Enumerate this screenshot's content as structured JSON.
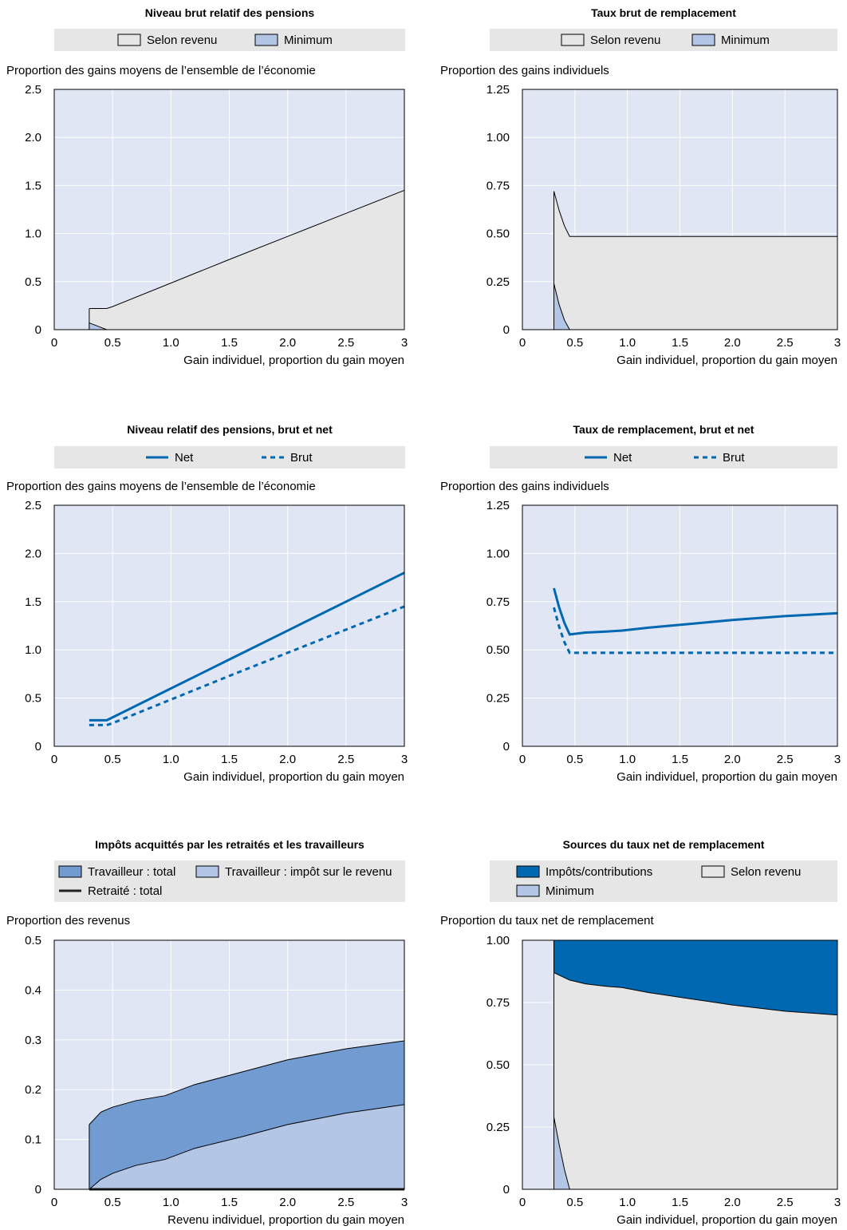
{
  "colors": {
    "plot_bg": "#e0e6f4",
    "legend_bg": "#e6e6e6",
    "grid": "#ffffff",
    "earnings_fill": "#e6e6e6",
    "minimum_fill": "#b3c6e6",
    "line_blue": "#0067b1",
    "tax_total_fill": "#729bd2",
    "tax_income_fill": "#b3c6e6",
    "tax_contrib_fill": "#0067b1",
    "outline": "#000000"
  },
  "chart_data": [
    {
      "type": "area",
      "title": "Niveau brut relatif des pensions",
      "legend": [
        "Selon revenu",
        "Minimum"
      ],
      "ylabel": "Proportion des gains moyens de l’ensemble de l’économie",
      "xlabel": "Gain individuel, proportion du gain moyen",
      "xlim": [
        0,
        3
      ],
      "ylim": [
        0,
        2.5
      ],
      "xticks": [
        "0",
        "0.5",
        "1.0",
        "1.5",
        "2.0",
        "2.5",
        "3"
      ],
      "yticks": [
        "0",
        "0.5",
        "1.0",
        "1.5",
        "2.0",
        "2.5"
      ],
      "grid": true,
      "x": [
        0.3,
        0.45,
        0.5,
        1.0,
        1.5,
        2.0,
        2.5,
        3.0
      ],
      "series": [
        {
          "name": "Selon revenu",
          "values": [
            0.22,
            0.22,
            0.24,
            0.485,
            0.73,
            0.97,
            1.21,
            1.45
          ]
        },
        {
          "name": "Minimum",
          "values": [
            0.07,
            0.0,
            0.0,
            0.0,
            0.0,
            0.0,
            0.0,
            0.0
          ]
        }
      ]
    },
    {
      "type": "area",
      "title": "Taux brut de remplacement",
      "legend": [
        "Selon revenu",
        "Minimum"
      ],
      "ylabel": "Proportion des gains individuels",
      "xlabel": "Gain individuel, proportion du gain moyen",
      "xlim": [
        0,
        3
      ],
      "ylim": [
        0,
        1.25
      ],
      "xticks": [
        "0",
        "0.5",
        "1.0",
        "1.5",
        "2.0",
        "2.5",
        "3"
      ],
      "yticks": [
        "0",
        "0.25",
        "0.50",
        "0.75",
        "1.00",
        "1.25"
      ],
      "grid": true,
      "x": [
        0.3,
        0.35,
        0.4,
        0.45,
        1.0,
        2.0,
        3.0
      ],
      "series": [
        {
          "name": "Selon revenu",
          "values": [
            0.72,
            0.62,
            0.54,
            0.485,
            0.485,
            0.485,
            0.485
          ]
        },
        {
          "name": "Minimum",
          "values": [
            0.24,
            0.13,
            0.05,
            0.0,
            0.0,
            0.0,
            0.0
          ]
        }
      ]
    },
    {
      "type": "line",
      "title": "Niveau relatif des pensions, brut et net",
      "legend": [
        "Net",
        "Brut"
      ],
      "ylabel": "Proportion des gains moyens de l’ensemble de l’économie",
      "xlabel": "Gain individuel, proportion du gain moyen",
      "xlim": [
        0,
        3
      ],
      "ylim": [
        0,
        2.5
      ],
      "xticks": [
        "0",
        "0.5",
        "1.0",
        "1.5",
        "2.0",
        "2.5",
        "3"
      ],
      "yticks": [
        "0",
        "0.5",
        "1.0",
        "1.5",
        "2.0",
        "2.5"
      ],
      "grid": true,
      "x": [
        0.3,
        0.45,
        0.5,
        1.0,
        1.5,
        2.0,
        2.5,
        3.0
      ],
      "series": [
        {
          "name": "Net",
          "values": [
            0.27,
            0.27,
            0.3,
            0.6,
            0.9,
            1.2,
            1.5,
            1.8
          ]
        },
        {
          "name": "Brut",
          "values": [
            0.22,
            0.22,
            0.24,
            0.485,
            0.73,
            0.97,
            1.21,
            1.45
          ]
        }
      ]
    },
    {
      "type": "line",
      "title": "Taux de remplacement, brut et net",
      "legend": [
        "Net",
        "Brut"
      ],
      "ylabel": "Proportion des gains individuels",
      "xlabel": "Gain individuel, proportion du gain moyen",
      "xlim": [
        0,
        3
      ],
      "ylim": [
        0,
        1.25
      ],
      "xticks": [
        "0",
        "0.5",
        "1.0",
        "1.5",
        "2.0",
        "2.5",
        "3"
      ],
      "yticks": [
        "0",
        "0.25",
        "0.50",
        "0.75",
        "1.00",
        "1.25"
      ],
      "grid": true,
      "x": [
        0.3,
        0.35,
        0.4,
        0.45,
        0.6,
        0.8,
        0.95,
        1.2,
        1.6,
        2.0,
        2.5,
        3.0
      ],
      "series": [
        {
          "name": "Net",
          "values": [
            0.82,
            0.72,
            0.64,
            0.58,
            0.59,
            0.595,
            0.6,
            0.615,
            0.635,
            0.655,
            0.675,
            0.69
          ]
        },
        {
          "name": "Brut",
          "values": [
            0.72,
            0.62,
            0.54,
            0.485,
            0.485,
            0.485,
            0.485,
            0.485,
            0.485,
            0.485,
            0.485,
            0.485
          ]
        }
      ]
    },
    {
      "type": "area",
      "title": "Impôts acquittés par les retraités et les travailleurs",
      "legend": [
        "Travailleur : total",
        "Travailleur : impôt sur le revenu",
        "Retraité : total"
      ],
      "ylabel": "Proportion des revenus",
      "xlabel": "Revenu individuel, proportion du gain moyen",
      "xlim": [
        0,
        3
      ],
      "ylim": [
        0,
        0.5
      ],
      "xticks": [
        "0",
        "0.5",
        "1.0",
        "1.5",
        "2.0",
        "2.5",
        "3"
      ],
      "yticks": [
        "0",
        "0.1",
        "0.2",
        "0.3",
        "0.4",
        "0.5"
      ],
      "grid": true,
      "x": [
        0.3,
        0.4,
        0.5,
        0.7,
        0.95,
        1.2,
        1.6,
        2.0,
        2.5,
        3.0
      ],
      "series": [
        {
          "name": "Travailleur : total",
          "values": [
            0.13,
            0.155,
            0.165,
            0.178,
            0.188,
            0.21,
            0.235,
            0.26,
            0.282,
            0.298
          ]
        },
        {
          "name": "Travailleur : impôt sur le revenu",
          "values": [
            0.0,
            0.02,
            0.032,
            0.048,
            0.06,
            0.082,
            0.105,
            0.13,
            0.153,
            0.17
          ]
        },
        {
          "name": "Retraité : total",
          "values": [
            0.0,
            0.0,
            0.0,
            0.0,
            0.0,
            0.0,
            0.0,
            0.0,
            0.0,
            0.0
          ]
        }
      ]
    },
    {
      "type": "area",
      "title": "Sources du taux net de remplacement",
      "legend": [
        "Impôts/contributions",
        "Selon revenu",
        "Minimum"
      ],
      "ylabel": "Proportion du taux net de remplacement",
      "xlabel": "Gain individuel, proportion du gain moyen",
      "xlim": [
        0,
        3
      ],
      "ylim": [
        0,
        1.0
      ],
      "xticks": [
        "0",
        "0.5",
        "1.0",
        "1.5",
        "2.0",
        "2.5",
        "3"
      ],
      "yticks": [
        "0",
        "0.25",
        "0.50",
        "0.75",
        "1.00"
      ],
      "grid": true,
      "x": [
        0.3,
        0.35,
        0.4,
        0.45,
        0.6,
        0.8,
        0.95,
        1.2,
        1.6,
        2.0,
        2.5,
        3.0
      ],
      "series": [
        {
          "name": "Impôts/contributions",
          "values": [
            1.0,
            1.0,
            1.0,
            1.0,
            1.0,
            1.0,
            1.0,
            1.0,
            1.0,
            1.0,
            1.0,
            1.0
          ]
        },
        {
          "name": "Selon revenu",
          "values": [
            0.87,
            0.86,
            0.85,
            0.84,
            0.825,
            0.815,
            0.81,
            0.79,
            0.765,
            0.74,
            0.715,
            0.7
          ]
        },
        {
          "name": "Minimum",
          "values": [
            0.29,
            0.18,
            0.08,
            0.0,
            0.0,
            0.0,
            0.0,
            0.0,
            0.0,
            0.0,
            0.0,
            0.0
          ]
        }
      ]
    }
  ]
}
